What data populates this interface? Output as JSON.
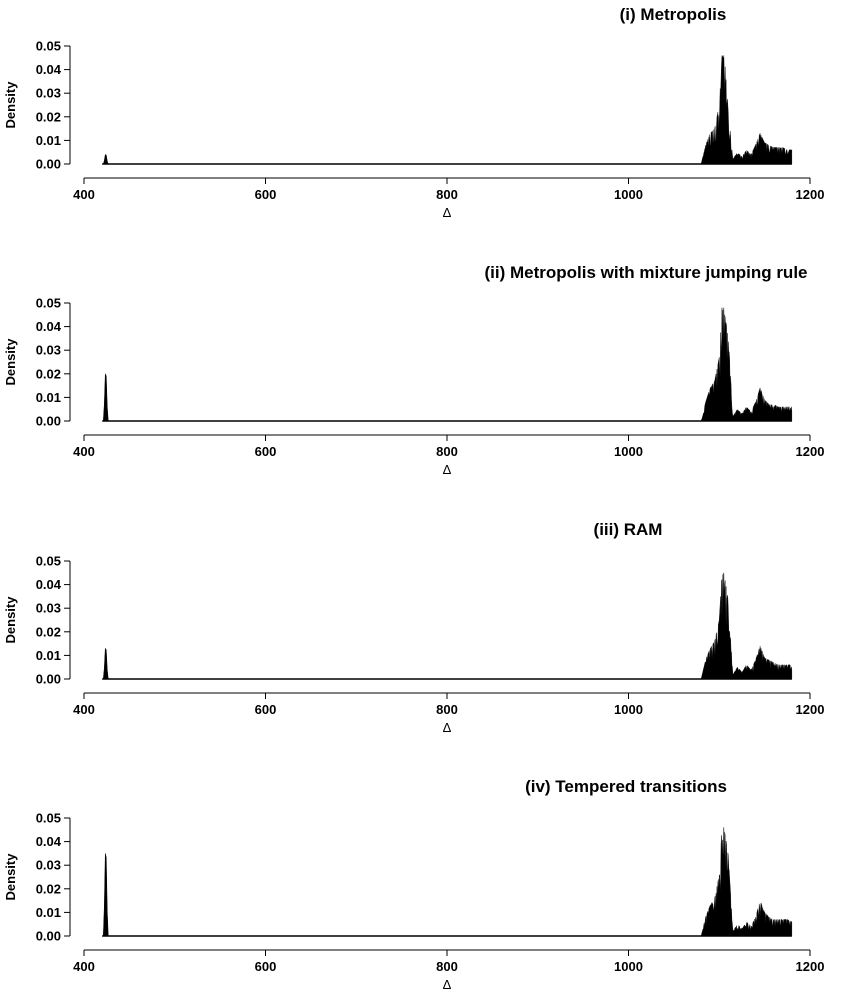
{
  "chart_data": [
    {
      "type": "area",
      "title": "(i)  Metropolis",
      "xlabel": "Δ",
      "ylabel": "Density",
      "xlim": [
        400,
        1200
      ],
      "ylim": [
        0,
        0.05
      ],
      "xticks": [
        "400",
        "600",
        "800",
        "1000",
        "1200"
      ],
      "yticks": [
        "0.00",
        "0.01",
        "0.02",
        "0.03",
        "0.04",
        "0.05"
      ],
      "support": [
        420,
        1180
      ],
      "left_peak": {
        "x": 424,
        "height": 0.004
      },
      "right_mode": {
        "x": 1105,
        "height": 0.046
      },
      "x": [
        1080,
        1085,
        1090,
        1095,
        1100,
        1103,
        1106,
        1110,
        1115,
        1120,
        1125,
        1130,
        1135,
        1140,
        1145,
        1150,
        1155,
        1160,
        1165,
        1170,
        1175,
        1180
      ],
      "y": [
        0.0,
        0.008,
        0.013,
        0.015,
        0.025,
        0.046,
        0.044,
        0.022,
        0.002,
        0.005,
        0.003,
        0.006,
        0.004,
        0.008,
        0.013,
        0.009,
        0.008,
        0.007,
        0.007,
        0.007,
        0.006,
        0.006
      ]
    },
    {
      "type": "area",
      "title": "(ii)  Metropolis with mixture jumping rule",
      "xlabel": "Δ",
      "ylabel": "Density",
      "xlim": [
        400,
        1200
      ],
      "ylim": [
        0,
        0.05
      ],
      "xticks": [
        "400",
        "600",
        "800",
        "1000",
        "1200"
      ],
      "yticks": [
        "0.00",
        "0.01",
        "0.02",
        "0.03",
        "0.04",
        "0.05"
      ],
      "support": [
        420,
        1180
      ],
      "left_peak": {
        "x": 424,
        "height": 0.02
      },
      "right_mode": {
        "x": 1105,
        "height": 0.048
      },
      "x": [
        1080,
        1085,
        1090,
        1095,
        1100,
        1103,
        1106,
        1110,
        1115,
        1120,
        1125,
        1130,
        1135,
        1140,
        1145,
        1150,
        1155,
        1160,
        1165,
        1170,
        1175,
        1180
      ],
      "y": [
        0.0,
        0.008,
        0.014,
        0.017,
        0.027,
        0.048,
        0.045,
        0.036,
        0.002,
        0.005,
        0.003,
        0.006,
        0.004,
        0.008,
        0.014,
        0.009,
        0.007,
        0.007,
        0.006,
        0.006,
        0.006,
        0.006
      ]
    },
    {
      "type": "area",
      "title": "(iii)  RAM",
      "xlabel": "Δ",
      "ylabel": "Density",
      "xlim": [
        400,
        1200
      ],
      "ylim": [
        0,
        0.05
      ],
      "xticks": [
        "400",
        "600",
        "800",
        "1000",
        "1200"
      ],
      "yticks": [
        "0.00",
        "0.01",
        "0.02",
        "0.03",
        "0.04",
        "0.05"
      ],
      "support": [
        420,
        1180
      ],
      "left_peak": {
        "x": 424,
        "height": 0.013
      },
      "right_mode": {
        "x": 1105,
        "height": 0.045
      },
      "x": [
        1080,
        1085,
        1090,
        1095,
        1100,
        1103,
        1106,
        1110,
        1115,
        1120,
        1125,
        1130,
        1135,
        1140,
        1145,
        1150,
        1155,
        1160,
        1165,
        1170,
        1175,
        1180
      ],
      "y": [
        0.0,
        0.008,
        0.013,
        0.016,
        0.025,
        0.045,
        0.043,
        0.033,
        0.002,
        0.005,
        0.003,
        0.006,
        0.004,
        0.008,
        0.014,
        0.009,
        0.008,
        0.007,
        0.006,
        0.006,
        0.006,
        0.006
      ]
    },
    {
      "type": "area",
      "title": "(iv)  Tempered transitions",
      "xlabel": "Δ",
      "ylabel": "Density",
      "xlim": [
        400,
        1200
      ],
      "ylim": [
        0,
        0.05
      ],
      "xticks": [
        "400",
        "600",
        "800",
        "1000",
        "1200"
      ],
      "yticks": [
        "0.00",
        "0.01",
        "0.02",
        "0.03",
        "0.04",
        "0.05"
      ],
      "support": [
        420,
        1180
      ],
      "left_peak": {
        "x": 424,
        "height": 0.035
      },
      "right_mode": {
        "x": 1105,
        "height": 0.046
      },
      "x": [
        1080,
        1085,
        1090,
        1095,
        1100,
        1103,
        1106,
        1110,
        1115,
        1120,
        1125,
        1130,
        1135,
        1140,
        1145,
        1150,
        1155,
        1160,
        1165,
        1170,
        1175,
        1180
      ],
      "y": [
        0.0,
        0.008,
        0.013,
        0.016,
        0.026,
        0.046,
        0.044,
        0.034,
        0.002,
        0.005,
        0.003,
        0.006,
        0.004,
        0.008,
        0.015,
        0.01,
        0.008,
        0.007,
        0.007,
        0.007,
        0.007,
        0.006
      ]
    }
  ]
}
